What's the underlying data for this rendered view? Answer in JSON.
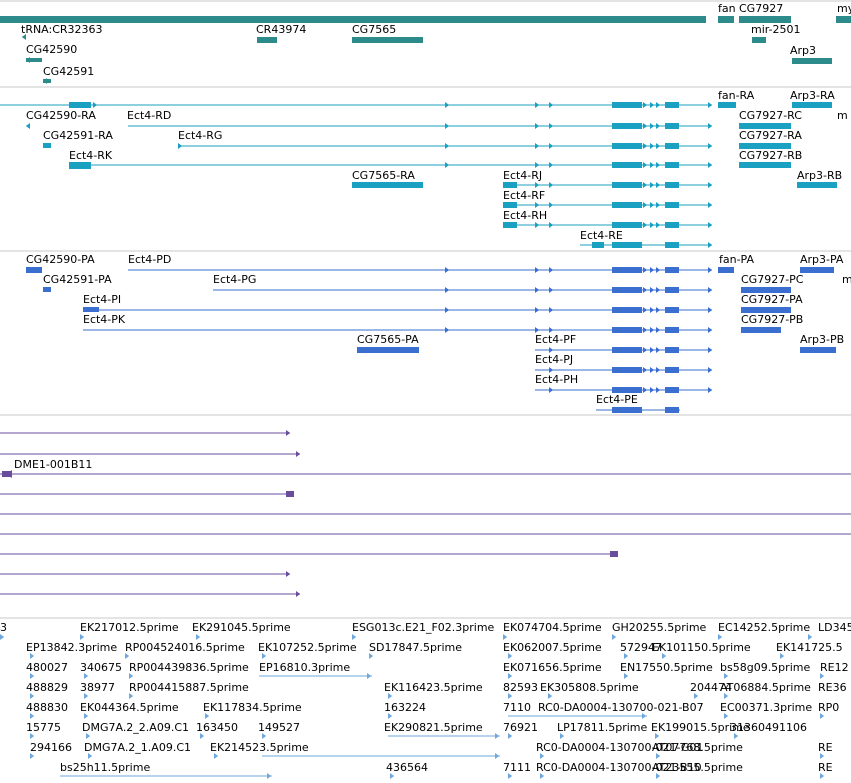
{
  "colors": {
    "gene": "#2e8b8b",
    "transcript": "#1aa0c0",
    "protein": "#3a6fcf",
    "est_purple": "#6a4c9c",
    "est": "#6fa8dc",
    "divider": "#c8c8c8"
  },
  "tracks": {
    "genes": {
      "labels": [
        "fan",
        "CG7927",
        "my",
        "tRNA:CR32363",
        "CR43974",
        "CG7565",
        "mir-2501",
        "CG42590",
        "Arp3",
        "CG42591"
      ]
    },
    "transcripts": {
      "labels": [
        "fan-RA",
        "Arp3-RA",
        "CG42590-RA",
        "Ect4-RD",
        "CG7927-RC",
        "m",
        "CG42591-RA",
        "Ect4-RG",
        "CG7927-RA",
        "Ect4-RK",
        "CG7927-RB",
        "CG7565-RA",
        "Ect4-RJ",
        "Arp3-RB",
        "Ect4-RF",
        "Ect4-RH",
        "Ect4-RE"
      ]
    },
    "proteins": {
      "labels": [
        "CG42590-PA",
        "Ect4-PD",
        "fan-PA",
        "Arp3-PA",
        "CG42591-PA",
        "Ect4-PG",
        "CG7927-PC",
        "m",
        "Ect4-PI",
        "CG7927-PA",
        "Ect4-PK",
        "CG7927-PB",
        "CG7565-PA",
        "Ect4-PF",
        "Arp3-PB",
        "Ect4-PJ",
        "Ect4-PH",
        "Ect4-PE"
      ]
    },
    "alignments": {
      "labels": [
        "DME1-001B11"
      ]
    },
    "ests": {
      "labels": [
        "3",
        "EK217012.5prime",
        "EK291045.5prime",
        "ESG013c.E21_F02.3prime",
        "EK074704.5prime",
        "GH20255.5prime",
        "EC14252.5prime",
        "LD345",
        "EP13842.3prime",
        "RP004524016.5prime",
        "EK107252.5prime",
        "SD17847.5prime",
        "EK062007.5prime",
        "572947",
        "EK101150.5prime",
        "EK141725.5",
        "480027",
        "340675",
        "RP004439836.5prime",
        "EP16810.3prime",
        "EK071656.5prime",
        "EN17550.5prime",
        "bs58g09.5prime",
        "RE12",
        "488829",
        "38977",
        "RP004415887.5prime",
        "EK116423.5prime",
        "82593",
        "EK305808.5prime",
        "204474",
        "AT06884.5prime",
        "RE36",
        "488830",
        "EK044364.5prime",
        "EK117834.5prime",
        "163224",
        "7110",
        "RC0-DA0004-130700-021-B07",
        "EC00371.3prime",
        "RP0",
        "15775",
        "DMG7A.2_2.A09.C1",
        "163450",
        "149527",
        "EK290821.5prime",
        "76921",
        "LP17811.5prime",
        "EK199015.5prime",
        "31360491106",
        "294166",
        "DMG7A.2_1.A09.C1",
        "EK214523.5prime",
        "RC0-DA0004-130700-021-G01",
        "AT07768.5prime",
        "RE",
        "bs25h11.5prime",
        "436564",
        "7111",
        "RC0-DA0004-130700-021-B10",
        "AT23555.5prime",
        "RE"
      ]
    }
  }
}
